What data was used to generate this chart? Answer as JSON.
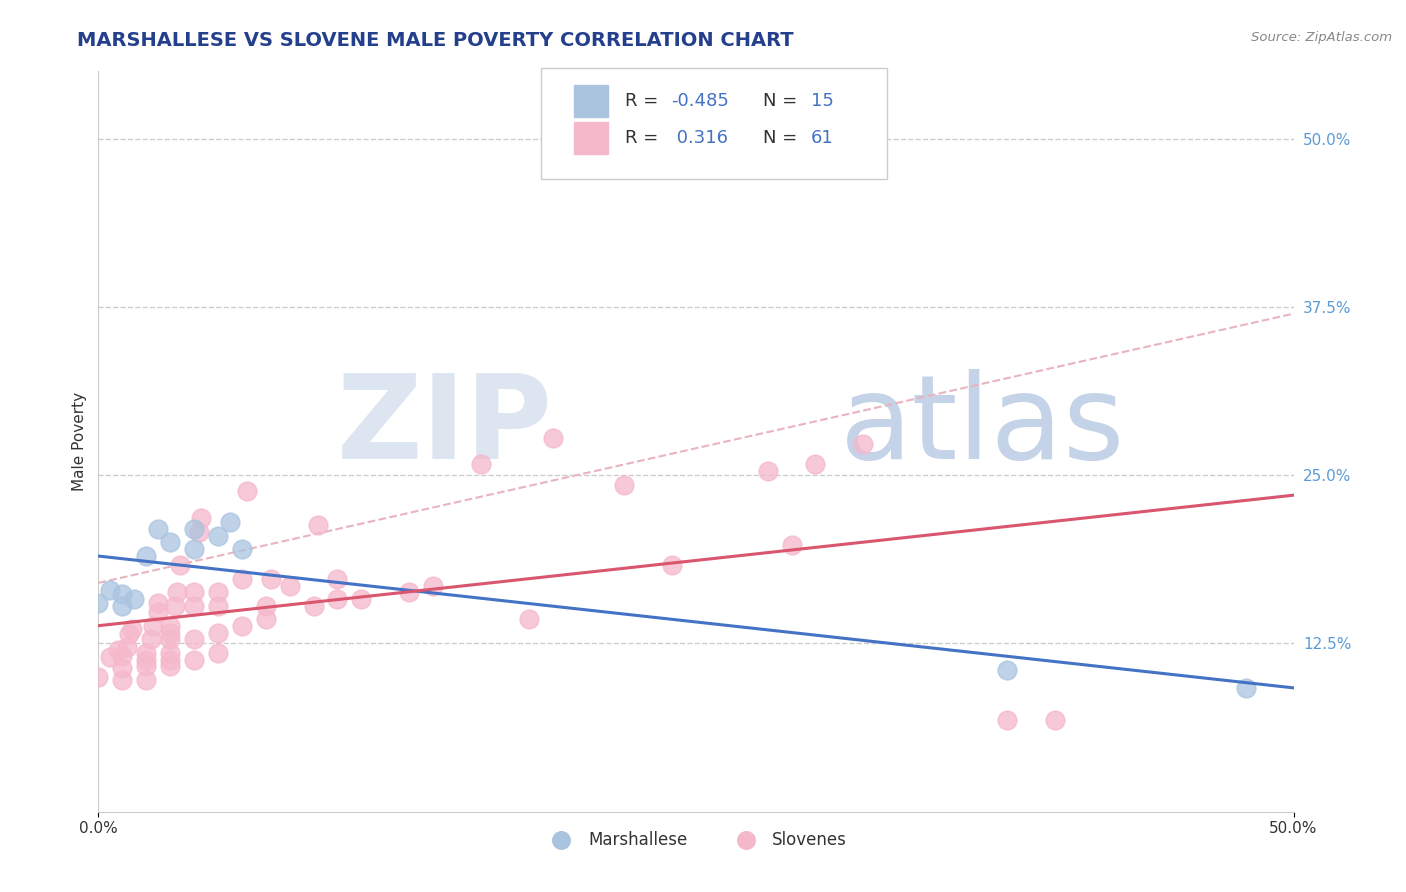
{
  "title": "MARSHALLESE VS SLOVENE MALE POVERTY CORRELATION CHART",
  "source": "Source: ZipAtlas.com",
  "ylabel": "Male Poverty",
  "xlim": [
    0.0,
    0.5
  ],
  "ylim": [
    0.0,
    0.55
  ],
  "yticks": [
    0.0,
    0.125,
    0.25,
    0.375,
    0.5
  ],
  "ytick_labels": [
    "",
    "12.5%",
    "25.0%",
    "37.5%",
    "50.0%"
  ],
  "legend_blue_R": "-0.485",
  "legend_blue_N": "15",
  "legend_pink_R": "0.316",
  "legend_pink_N": "61",
  "blue_scatter_color": "#aac4e0",
  "pink_scatter_color": "#f5b8cb",
  "blue_line_color": "#4472c4",
  "pink_line_color": "#d9566e",
  "ref_line_color": "#e8b4be",
  "tick_color": "#5b9bd5",
  "title_color": "#243f8c",
  "marshallese_points": [
    [
      0.0,
      0.155
    ],
    [
      0.005,
      0.165
    ],
    [
      0.01,
      0.153
    ],
    [
      0.01,
      0.162
    ],
    [
      0.015,
      0.158
    ],
    [
      0.02,
      0.19
    ],
    [
      0.025,
      0.21
    ],
    [
      0.03,
      0.2
    ],
    [
      0.04,
      0.195
    ],
    [
      0.04,
      0.21
    ],
    [
      0.05,
      0.205
    ],
    [
      0.055,
      0.215
    ],
    [
      0.06,
      0.195
    ],
    [
      0.38,
      0.105
    ],
    [
      0.48,
      0.092
    ]
  ],
  "slovene_points": [
    [
      0.0,
      0.1
    ],
    [
      0.005,
      0.115
    ],
    [
      0.008,
      0.12
    ],
    [
      0.01,
      0.098
    ],
    [
      0.01,
      0.107
    ],
    [
      0.01,
      0.116
    ],
    [
      0.012,
      0.122
    ],
    [
      0.013,
      0.132
    ],
    [
      0.014,
      0.136
    ],
    [
      0.02,
      0.098
    ],
    [
      0.02,
      0.108
    ],
    [
      0.02,
      0.113
    ],
    [
      0.02,
      0.118
    ],
    [
      0.022,
      0.128
    ],
    [
      0.023,
      0.138
    ],
    [
      0.025,
      0.148
    ],
    [
      0.025,
      0.155
    ],
    [
      0.03,
      0.108
    ],
    [
      0.03,
      0.113
    ],
    [
      0.03,
      0.118
    ],
    [
      0.03,
      0.128
    ],
    [
      0.03,
      0.133
    ],
    [
      0.03,
      0.138
    ],
    [
      0.032,
      0.153
    ],
    [
      0.033,
      0.163
    ],
    [
      0.034,
      0.183
    ],
    [
      0.04,
      0.113
    ],
    [
      0.04,
      0.128
    ],
    [
      0.04,
      0.153
    ],
    [
      0.04,
      0.163
    ],
    [
      0.042,
      0.208
    ],
    [
      0.043,
      0.218
    ],
    [
      0.05,
      0.118
    ],
    [
      0.05,
      0.133
    ],
    [
      0.05,
      0.153
    ],
    [
      0.05,
      0.163
    ],
    [
      0.06,
      0.138
    ],
    [
      0.06,
      0.173
    ],
    [
      0.062,
      0.238
    ],
    [
      0.07,
      0.143
    ],
    [
      0.07,
      0.153
    ],
    [
      0.072,
      0.173
    ],
    [
      0.08,
      0.168
    ],
    [
      0.09,
      0.153
    ],
    [
      0.092,
      0.213
    ],
    [
      0.1,
      0.158
    ],
    [
      0.1,
      0.173
    ],
    [
      0.11,
      0.158
    ],
    [
      0.13,
      0.163
    ],
    [
      0.14,
      0.168
    ],
    [
      0.16,
      0.258
    ],
    [
      0.18,
      0.143
    ],
    [
      0.19,
      0.278
    ],
    [
      0.22,
      0.243
    ],
    [
      0.24,
      0.183
    ],
    [
      0.28,
      0.253
    ],
    [
      0.29,
      0.198
    ],
    [
      0.3,
      0.258
    ],
    [
      0.32,
      0.273
    ],
    [
      0.38,
      0.068
    ],
    [
      0.4,
      0.068
    ]
  ],
  "watermark_zip_color": "#dce5f0",
  "watermark_atlas_color": "#c5d3e8",
  "title_fontsize": 14,
  "axis_label_fontsize": 11,
  "tick_fontsize": 11,
  "legend_fontsize": 13
}
